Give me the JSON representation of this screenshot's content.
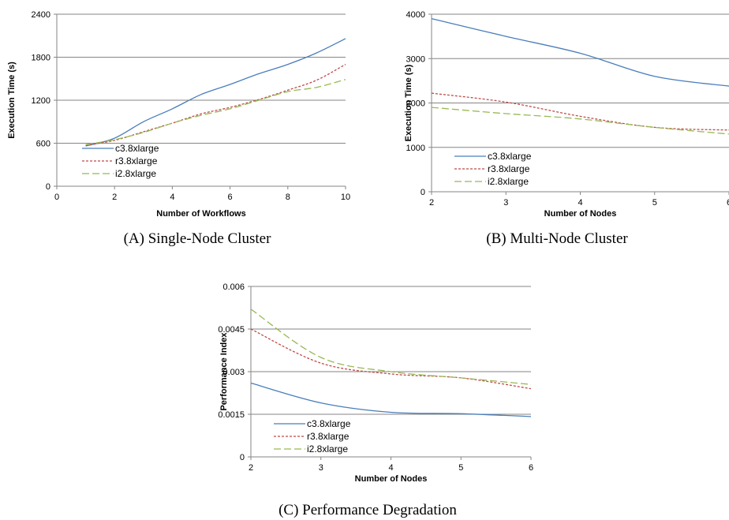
{
  "colors": {
    "c3": "#4a7ebb",
    "r3": "#be4b48",
    "i2": "#98b954",
    "grid": "#868686"
  },
  "chart_data": [
    {
      "type": "line",
      "caption": "(A) Single-Node Cluster",
      "xlabel": "Number of Workflows",
      "ylabel": "Execution Time (s)",
      "xlim": [
        0,
        10
      ],
      "ylim": [
        0,
        2400
      ],
      "xticks": [
        "0",
        "2",
        "4",
        "6",
        "8",
        "10"
      ],
      "yticks": [
        "0",
        "600",
        "1200",
        "1800",
        "2400"
      ],
      "x": [
        1,
        2,
        3,
        4,
        5,
        6,
        7,
        8,
        9,
        10
      ],
      "series": [
        {
          "name": "c3.8xlarge",
          "values": [
            560,
            670,
            900,
            1080,
            1280,
            1420,
            1570,
            1700,
            1860,
            2060
          ]
        },
        {
          "name": "r3.8xlarge",
          "values": [
            570,
            640,
            760,
            880,
            1010,
            1100,
            1210,
            1340,
            1480,
            1700
          ]
        },
        {
          "name": "i2.8xlarge",
          "values": [
            580,
            650,
            750,
            880,
            990,
            1080,
            1200,
            1320,
            1380,
            1490
          ]
        }
      ],
      "legend": "bottom-left"
    },
    {
      "type": "line",
      "caption": "(B) Multi-Node Cluster",
      "xlabel": "Number of Nodes",
      "ylabel": "Execution Time (s)",
      "xlim": [
        2,
        6
      ],
      "ylim": [
        0,
        4000
      ],
      "xticks": [
        "2",
        "3",
        "4",
        "5",
        "6"
      ],
      "yticks": [
        "0",
        "1000",
        "2000",
        "3000",
        "4000"
      ],
      "x": [
        2,
        3,
        4,
        5,
        6
      ],
      "series": [
        {
          "name": "c3.8xlarge",
          "values": [
            3900,
            3500,
            3120,
            2600,
            2380
          ]
        },
        {
          "name": "r3.8xlarge",
          "values": [
            2220,
            2020,
            1700,
            1450,
            1390
          ]
        },
        {
          "name": "i2.8xlarge",
          "values": [
            1900,
            1760,
            1640,
            1450,
            1300
          ]
        }
      ],
      "legend": "bottom-left"
    },
    {
      "type": "line",
      "caption": "(C) Performance Degradation",
      "xlabel": "Number of Nodes",
      "ylabel": "Performance Index",
      "xlim": [
        2,
        6
      ],
      "ylim": [
        0,
        0.006
      ],
      "xticks": [
        "2",
        "3",
        "4",
        "5",
        "6"
      ],
      "yticks": [
        "0",
        "0.0015",
        "0.003",
        "0.0045",
        "0.006"
      ],
      "x": [
        2,
        3,
        4,
        5,
        6
      ],
      "series": [
        {
          "name": "c3.8xlarge",
          "values": [
            0.0026,
            0.0019,
            0.00157,
            0.00152,
            0.00142
          ]
        },
        {
          "name": "r3.8xlarge",
          "values": [
            0.0045,
            0.0033,
            0.00292,
            0.00278,
            0.0024
          ]
        },
        {
          "name": "i2.8xlarge",
          "values": [
            0.0052,
            0.0035,
            0.003,
            0.00278,
            0.00255
          ]
        }
      ],
      "legend": "bottom-left"
    }
  ]
}
